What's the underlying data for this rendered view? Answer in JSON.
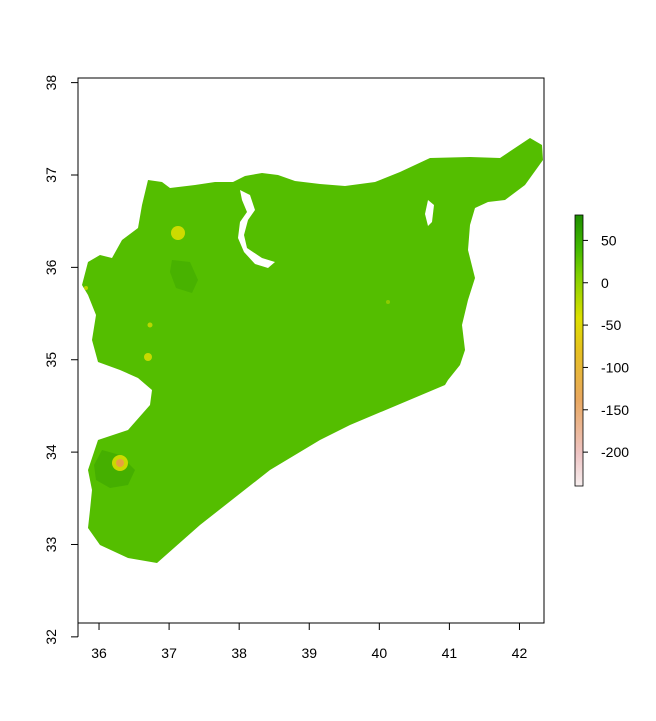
{
  "chart_data": {
    "type": "raster-map",
    "title": "",
    "xlabel": "",
    "ylabel": "",
    "x_ticks": [
      "36",
      "37",
      "38",
      "39",
      "40",
      "41",
      "42"
    ],
    "y_ticks": [
      "32",
      "33",
      "34",
      "35",
      "36",
      "37",
      "38"
    ],
    "xlim": [
      35.7,
      42.35
    ],
    "ylim": [
      32.15,
      38.05
    ],
    "legend": {
      "placement": "right",
      "ticks": [
        "50",
        "0",
        "-50",
        "-100",
        "-150",
        "-200"
      ],
      "range": [
        -240,
        80
      ]
    },
    "colors": {
      "fill": "#54be00",
      "fill_dark": "#3ea800",
      "yellow": "#e3e000",
      "orange": "#e8a040",
      "pink": "#f0c8c8",
      "frame": "#000000"
    }
  }
}
